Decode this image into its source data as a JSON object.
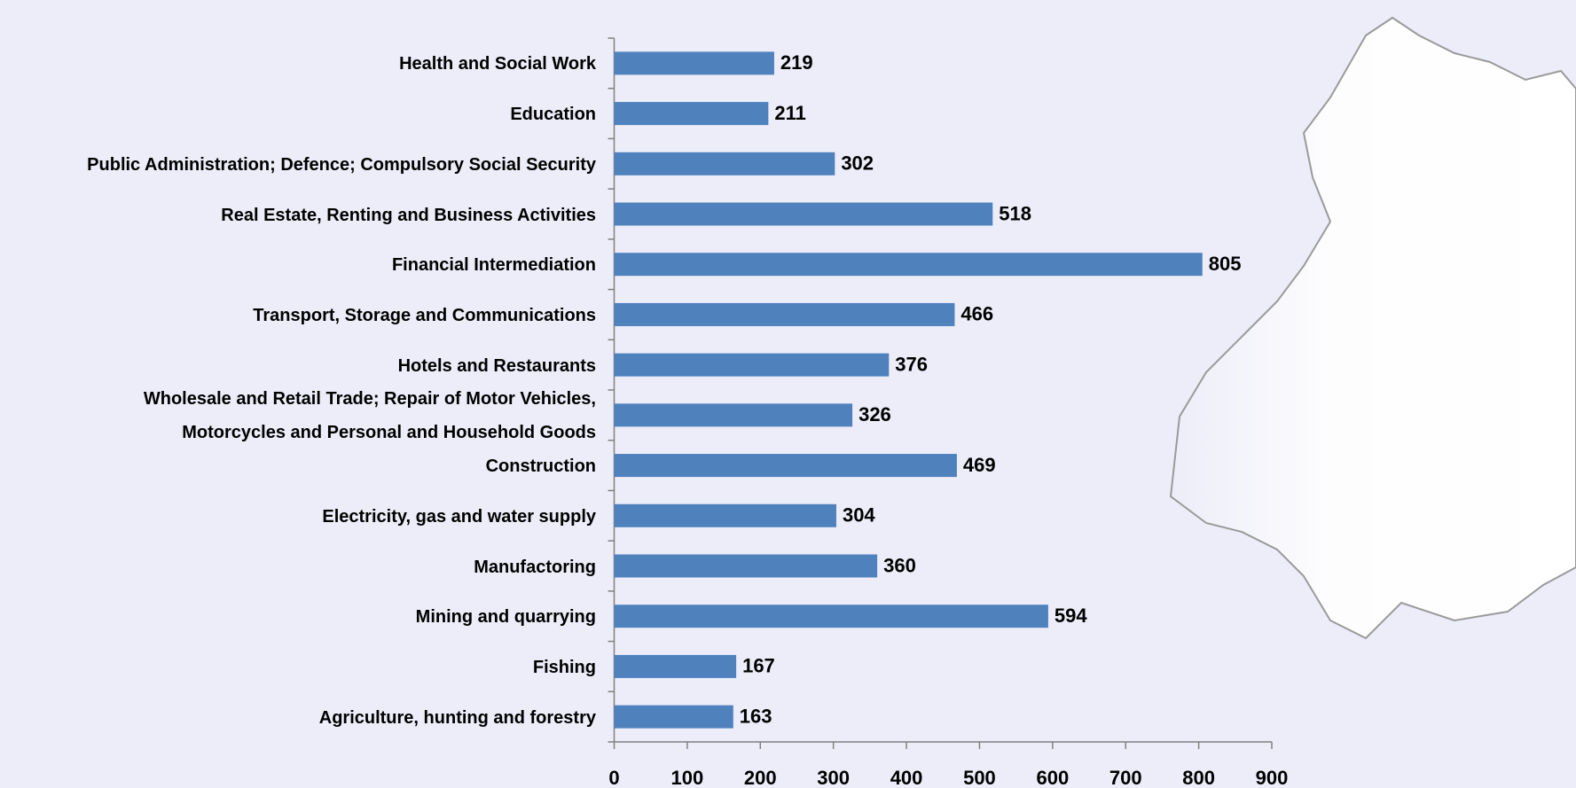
{
  "chart_data": {
    "type": "bar",
    "orientation": "horizontal",
    "categories": [
      "Health and Social Work",
      "Education",
      "Public Administration; Defence; Compulsory Social Security",
      "Real Estate, Renting and Business Activities",
      "Financial Intermediation",
      "Transport, Storage and Communications",
      "Hotels and Restaurants",
      "Wholesale and Retail Trade; Repair of Motor Vehicles,\nMotorcycles and Personal and Household Goods",
      "Construction",
      "Electricity, gas and water supply",
      "Manufactoring",
      "Mining and quarrying",
      "Fishing",
      "Agriculture, hunting and forestry"
    ],
    "values": [
      219,
      211,
      302,
      518,
      805,
      466,
      376,
      326,
      469,
      304,
      360,
      594,
      167,
      163
    ],
    "color": "#4f81bd",
    "xlim": [
      0,
      900
    ],
    "xticks": [
      0,
      100,
      200,
      300,
      400,
      500,
      600,
      700,
      800,
      900
    ],
    "data_labels": true
  }
}
